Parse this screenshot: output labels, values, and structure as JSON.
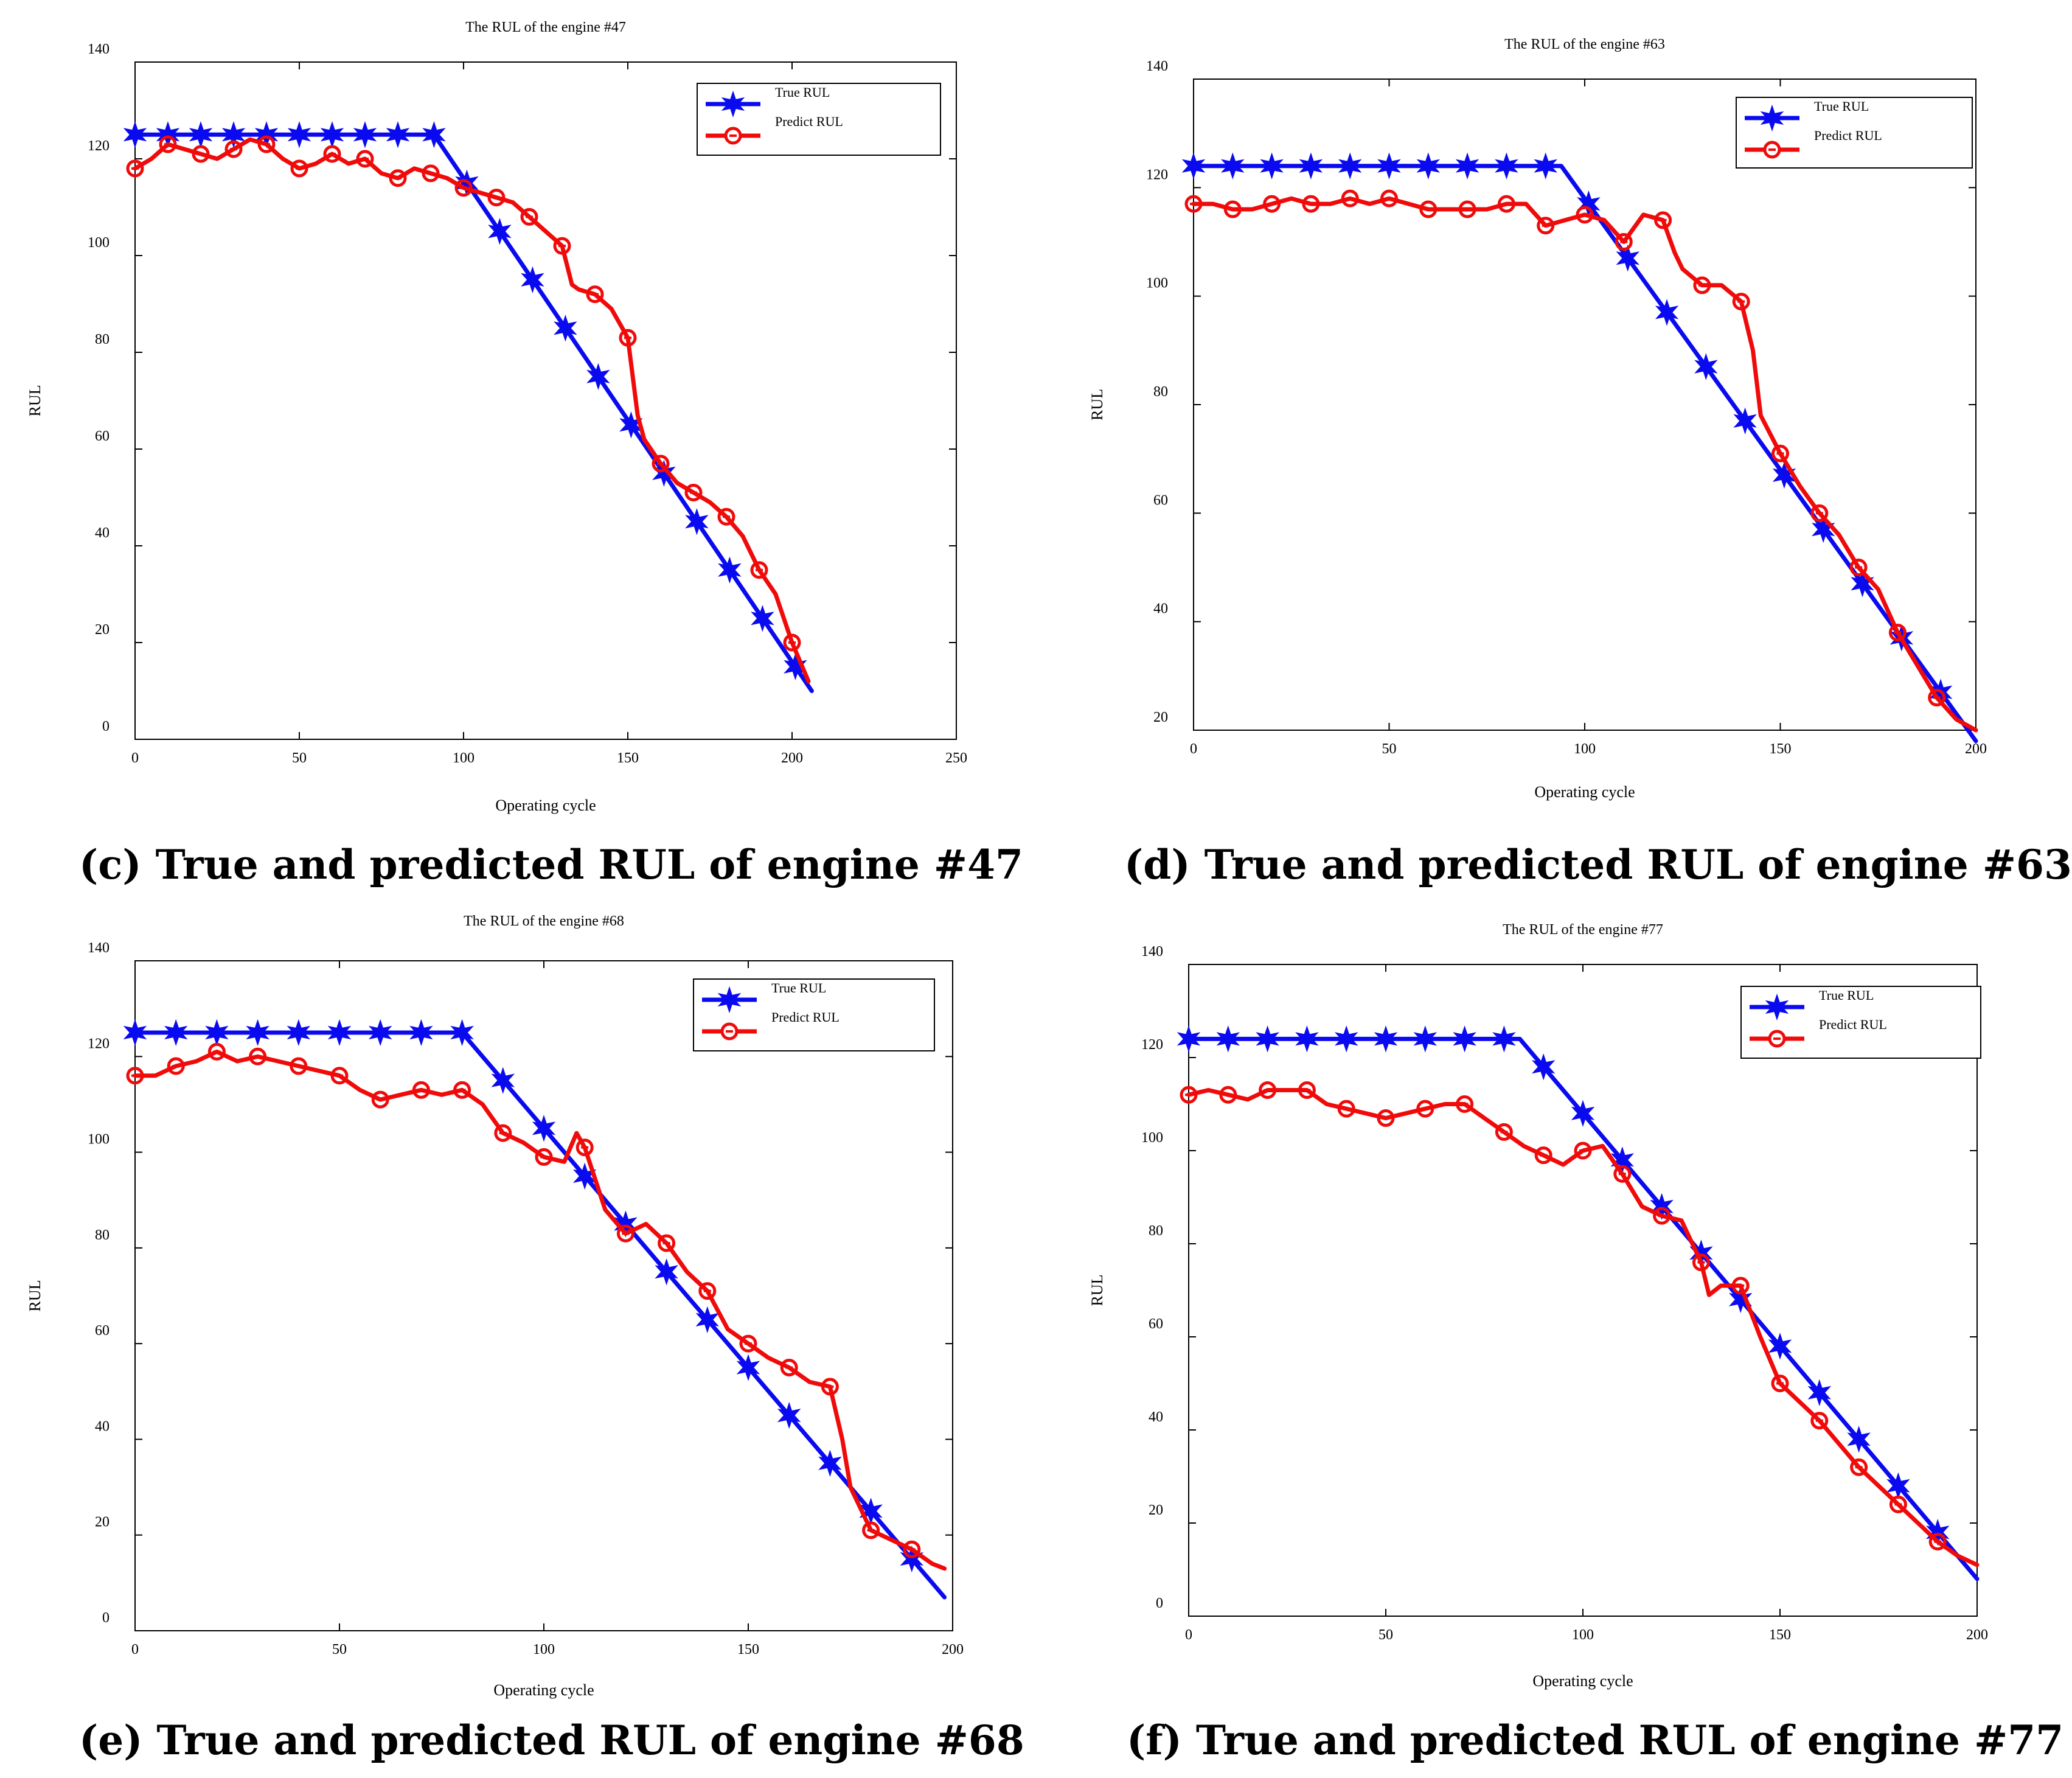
{
  "colors": {
    "true_rul": "#0a0af0",
    "predict_rul": "#f00a0a",
    "axis": "#000000"
  },
  "chart_data": [
    {
      "id": "c",
      "type": "line",
      "title": "The RUL of the engine #47",
      "caption": "(c) True and predicted RUL of engine #47",
      "xlabel": "Operating cycle",
      "ylabel": "RUL",
      "xlim": [
        0,
        250
      ],
      "ylim": [
        0,
        140
      ],
      "xticks": [
        0,
        50,
        100,
        150,
        200,
        250
      ],
      "yticks": [
        0,
        20,
        40,
        60,
        80,
        100,
        120,
        140
      ],
      "legend": {
        "position": "top-right",
        "entries": [
          "True RUL",
          "Predict  RUL"
        ]
      },
      "series": [
        {
          "name": "True RUL",
          "marker": "star",
          "x": [
            0,
            91,
            206
          ],
          "y": [
            125,
            125,
            10
          ],
          "marker_x": [
            0,
            10,
            20,
            30,
            40,
            50,
            60,
            70,
            80,
            91,
            101,
            111,
            121,
            131,
            141,
            151,
            161,
            171,
            181,
            191,
            201
          ]
        },
        {
          "name": "Predict  RUL",
          "marker": "circle",
          "x": [
            0,
            5,
            10,
            15,
            20,
            25,
            30,
            35,
            40,
            45,
            50,
            55,
            60,
            65,
            70,
            75,
            80,
            85,
            90,
            95,
            100,
            105,
            110,
            115,
            120,
            125,
            130,
            133,
            135,
            140,
            145,
            150,
            153,
            155,
            160,
            165,
            170,
            175,
            180,
            185,
            190,
            195,
            200,
            205
          ],
          "y": [
            118,
            120,
            123,
            122,
            121,
            120,
            122,
            124,
            123,
            120,
            118,
            119,
            121,
            119,
            120,
            117,
            116,
            118,
            117,
            116,
            114,
            113,
            112,
            111,
            108,
            105,
            102,
            94,
            93,
            92,
            89,
            83,
            67,
            62,
            57,
            53,
            51,
            49,
            46,
            42,
            35,
            30,
            20,
            12
          ],
          "marker_x": [
            0,
            10,
            20,
            30,
            40,
            50,
            60,
            70,
            80,
            90,
            100,
            110,
            120,
            130,
            140,
            150,
            160,
            170,
            180,
            190,
            200
          ]
        }
      ]
    },
    {
      "id": "d",
      "type": "line",
      "title": "The RUL of the engine #63",
      "caption": "(d) True and predicted RUL of engine #63",
      "xlabel": "Operating cycle",
      "ylabel": "RUL",
      "xlim": [
        0,
        200
      ],
      "ylim": [
        20,
        140
      ],
      "xticks": [
        0,
        50,
        100,
        150,
        200
      ],
      "yticks": [
        20,
        40,
        60,
        80,
        100,
        120,
        140
      ],
      "legend": {
        "position": "top-right",
        "entries": [
          "True RUL",
          "Predict  RUL"
        ]
      },
      "series": [
        {
          "name": "True RUL",
          "marker": "star",
          "x": [
            0,
            94,
            200
          ],
          "y": [
            124,
            124,
            18
          ],
          "marker_x": [
            0,
            10,
            20,
            30,
            40,
            50,
            60,
            70,
            80,
            90,
            101,
            111,
            121,
            131,
            141,
            151,
            161,
            171,
            181,
            191
          ]
        },
        {
          "name": "Predict  RUL",
          "marker": "circle",
          "x": [
            0,
            5,
            10,
            15,
            20,
            25,
            30,
            35,
            40,
            45,
            50,
            55,
            60,
            65,
            70,
            75,
            80,
            85,
            90,
            95,
            100,
            105,
            110,
            115,
            120,
            123,
            125,
            130,
            135,
            140,
            143,
            145,
            150,
            155,
            160,
            165,
            170,
            175,
            180,
            185,
            190,
            195,
            200
          ],
          "y": [
            117,
            117,
            116,
            116,
            117,
            118,
            117,
            117,
            118,
            117,
            118,
            117,
            116,
            116,
            116,
            116,
            117,
            117,
            113,
            114,
            115,
            114,
            110,
            115,
            114,
            108,
            105,
            102,
            102,
            99,
            90,
            78,
            71,
            65,
            60,
            56,
            50,
            46,
            38,
            32,
            26,
            22,
            20
          ],
          "marker_x": [
            0,
            10,
            20,
            30,
            40,
            50,
            60,
            70,
            80,
            90,
            100,
            110,
            120,
            130,
            140,
            150,
            160,
            170,
            180,
            190
          ]
        }
      ]
    },
    {
      "id": "e",
      "type": "line",
      "title": "The RUL of the engine #68",
      "caption": "(e) True and predicted RUL of engine #68",
      "xlabel": "Operating cycle",
      "ylabel": "RUL",
      "xlim": [
        0,
        200
      ],
      "ylim": [
        0,
        140
      ],
      "xticks": [
        0,
        50,
        100,
        150,
        200
      ],
      "yticks": [
        0,
        20,
        40,
        60,
        80,
        100,
        120,
        140
      ],
      "legend": {
        "position": "top-right",
        "entries": [
          "True RUL",
          "Predict  RUL"
        ]
      },
      "series": [
        {
          "name": "True RUL",
          "marker": "star",
          "x": [
            0,
            80,
            198
          ],
          "y": [
            125,
            125,
            7
          ],
          "marker_x": [
            0,
            10,
            20,
            30,
            40,
            50,
            60,
            70,
            80,
            90,
            100,
            110,
            120,
            130,
            140,
            150,
            160,
            170,
            180,
            190
          ]
        },
        {
          "name": "Predict  RUL",
          "marker": "circle",
          "x": [
            0,
            5,
            10,
            15,
            20,
            25,
            30,
            35,
            40,
            45,
            50,
            55,
            60,
            65,
            70,
            75,
            80,
            85,
            90,
            95,
            100,
            105,
            108,
            110,
            115,
            120,
            125,
            130,
            135,
            140,
            145,
            150,
            155,
            160,
            165,
            170,
            173,
            175,
            180,
            185,
            190,
            195,
            198
          ],
          "y": [
            116,
            116,
            118,
            119,
            121,
            119,
            120,
            119,
            118,
            117,
            116,
            113,
            111,
            112,
            113,
            112,
            113,
            110,
            104,
            102,
            99,
            98,
            104,
            101,
            88,
            83,
            85,
            81,
            75,
            71,
            63,
            60,
            57,
            55,
            52,
            51,
            40,
            30,
            21,
            19,
            17,
            14,
            13
          ],
          "marker_x": [
            0,
            10,
            20,
            30,
            40,
            50,
            60,
            70,
            80,
            90,
            100,
            110,
            120,
            130,
            140,
            150,
            160,
            170,
            180,
            190
          ]
        }
      ]
    },
    {
      "id": "f",
      "type": "line",
      "title": "The RUL of the engine #77",
      "caption": "(f) True and predicted RUL of engine #77",
      "xlabel": "Operating cycle",
      "ylabel": "RUL",
      "xlim": [
        0,
        200
      ],
      "ylim": [
        0,
        140
      ],
      "xticks": [
        0,
        50,
        100,
        150,
        200
      ],
      "yticks": [
        0,
        20,
        40,
        60,
        80,
        100,
        120,
        140
      ],
      "legend": {
        "position": "top-right",
        "entries": [
          "True RUL",
          "Predict  RUL"
        ]
      },
      "series": [
        {
          "name": "True RUL",
          "marker": "star",
          "x": [
            0,
            84,
            200
          ],
          "y": [
            124,
            124,
            8
          ],
          "marker_x": [
            0,
            10,
            20,
            30,
            40,
            50,
            60,
            70,
            80,
            90,
            100,
            110,
            120,
            130,
            140,
            150,
            160,
            170,
            180,
            190
          ]
        },
        {
          "name": "Predict  RUL",
          "marker": "circle",
          "x": [
            0,
            5,
            10,
            15,
            20,
            25,
            30,
            35,
            40,
            45,
            50,
            55,
            60,
            65,
            70,
            75,
            80,
            85,
            90,
            95,
            100,
            105,
            110,
            115,
            120,
            125,
            130,
            132,
            135,
            140,
            145,
            150,
            155,
            160,
            165,
            170,
            175,
            180,
            185,
            190,
            195,
            200
          ],
          "y": [
            112,
            113,
            112,
            111,
            113,
            113,
            113,
            110,
            109,
            108,
            107,
            108,
            109,
            110,
            110,
            107,
            104,
            101,
            99,
            97,
            100,
            101,
            95,
            88,
            86,
            85,
            76,
            69,
            71,
            71,
            60,
            50,
            46,
            42,
            37,
            32,
            28,
            24,
            20,
            16,
            13,
            11
          ],
          "marker_x": [
            0,
            10,
            20,
            30,
            40,
            50,
            60,
            70,
            80,
            90,
            100,
            110,
            120,
            130,
            140,
            150,
            160,
            170,
            180,
            190
          ]
        }
      ]
    }
  ]
}
